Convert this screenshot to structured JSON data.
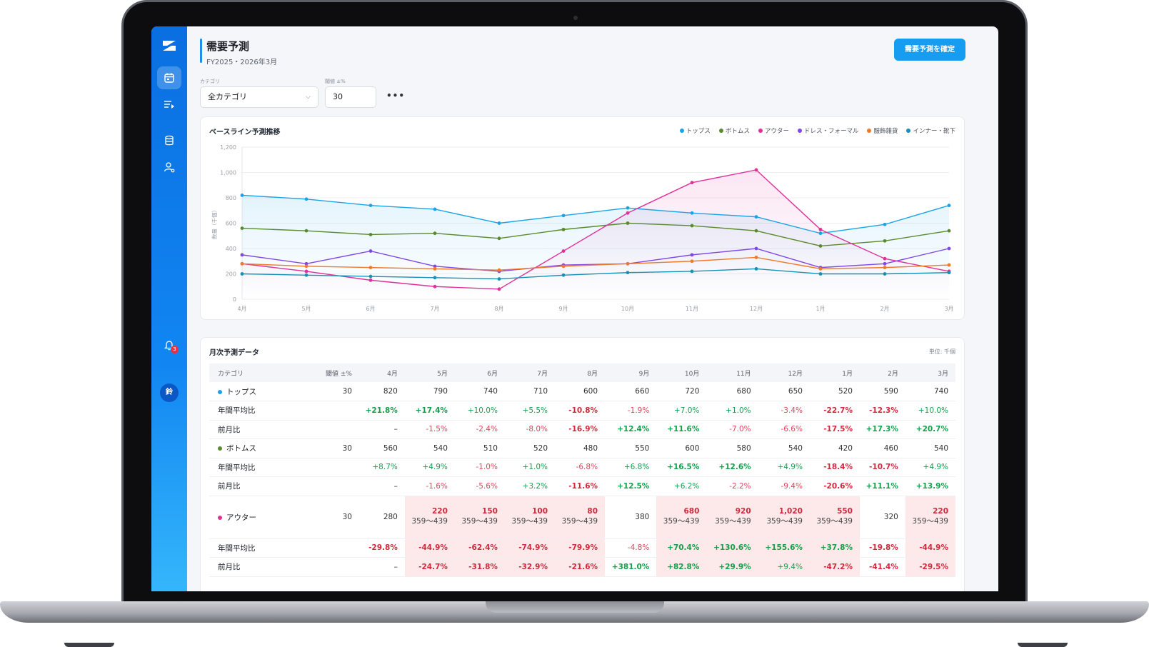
{
  "app": {
    "title": "需要予測",
    "subtitle": "FY2025・2026年3月",
    "confirm_button": "需要予測を確定",
    "notification_count": "3",
    "avatar_initial": "鈴"
  },
  "filters": {
    "category_label": "カテゴリ",
    "category_value": "全カテゴリ",
    "threshold_label": "閾値 ±%",
    "threshold_value": "30",
    "more": "•••"
  },
  "chart": {
    "title": "ベースライン予測推移",
    "y_axis_label": "数量（千個）"
  },
  "chart_data": {
    "type": "line",
    "categories": [
      "4月",
      "5月",
      "6月",
      "7月",
      "8月",
      "9月",
      "10月",
      "11月",
      "12月",
      "1月",
      "2月",
      "3月"
    ],
    "ylim": [
      0,
      1200
    ],
    "yticks": [
      "0",
      "200",
      "400",
      "600",
      "800",
      "1,000",
      "1,200"
    ],
    "ytick_values": [
      0,
      200,
      400,
      600,
      800,
      1000,
      1200
    ],
    "grid": true,
    "legend_position": "top-right",
    "series": [
      {
        "name": "トップス",
        "color": "#1aa3e8",
        "values": [
          820,
          790,
          740,
          710,
          600,
          660,
          720,
          680,
          650,
          520,
          590,
          740
        ],
        "fill": true
      },
      {
        "name": "ボトムス",
        "color": "#5a8a2e",
        "values": [
          560,
          540,
          510,
          520,
          480,
          550,
          600,
          580,
          540,
          420,
          460,
          540
        ],
        "fill": false
      },
      {
        "name": "アウター",
        "color": "#e0309a",
        "values": [
          280,
          220,
          150,
          100,
          80,
          380,
          680,
          920,
          1020,
          550,
          320,
          220
        ],
        "fill": true
      },
      {
        "name": "ドレス・フォーマル",
        "color": "#8048e6",
        "values": [
          350,
          280,
          380,
          260,
          220,
          270,
          280,
          350,
          400,
          250,
          280,
          400
        ],
        "fill": false
      },
      {
        "name": "服飾雑貨",
        "color": "#f07a2a",
        "values": [
          280,
          260,
          250,
          240,
          230,
          260,
          280,
          300,
          330,
          240,
          250,
          270
        ],
        "fill": false
      },
      {
        "name": "インナー・靴下",
        "color": "#1790b8",
        "values": [
          200,
          190,
          180,
          170,
          160,
          190,
          210,
          220,
          240,
          200,
          200,
          210
        ],
        "fill": false
      }
    ]
  },
  "table": {
    "title": "月次予測データ",
    "unit": "単位: 千個",
    "headers": [
      "カテゴリ",
      "閾値 ±%",
      "4月",
      "5月",
      "6月",
      "7月",
      "8月",
      "9月",
      "10月",
      "11月",
      "12月",
      "1月",
      "2月",
      "3月"
    ],
    "rows": [
      {
        "label": "トップス",
        "threshold": "30",
        "color": "#1aa3e8",
        "values": [
          "820",
          "790",
          "740",
          "710",
          "600",
          "660",
          "720",
          "680",
          "650",
          "520",
          "590",
          "740"
        ]
      },
      {
        "label": "年間平均比",
        "values": [
          "+21.8%",
          "+17.4%",
          "+10.0%",
          "+5.5%",
          "-10.8%",
          "-1.9%",
          "+7.0%",
          "+1.0%",
          "-3.4%",
          "-22.7%",
          "-12.3%",
          "+10.0%"
        ]
      },
      {
        "label": "前月比",
        "values": [
          "–",
          "-1.5%",
          "-2.4%",
          "-8.0%",
          "-16.9%",
          "+12.4%",
          "+11.6%",
          "-7.0%",
          "-6.6%",
          "-17.5%",
          "+17.3%",
          "+20.7%"
        ]
      },
      {
        "label": "ボトムス",
        "threshold": "30",
        "color": "#5a8a2e",
        "values": [
          "560",
          "540",
          "510",
          "520",
          "480",
          "550",
          "600",
          "580",
          "540",
          "420",
          "460",
          "540"
        ]
      },
      {
        "label": "年間平均比",
        "values": [
          "+8.7%",
          "+4.9%",
          "-1.0%",
          "+1.0%",
          "-6.8%",
          "+6.8%",
          "+16.5%",
          "+12.6%",
          "+4.9%",
          "-18.4%",
          "-10.7%",
          "+4.9%"
        ]
      },
      {
        "label": "前月比",
        "values": [
          "–",
          "-1.6%",
          "-5.6%",
          "+3.2%",
          "-11.6%",
          "+12.5%",
          "+6.2%",
          "-2.2%",
          "-9.4%",
          "-20.6%",
          "+11.1%",
          "+13.9%"
        ]
      },
      {
        "label": "アウター",
        "threshold": "30",
        "color": "#e0309a",
        "values": [
          "280",
          "220",
          "150",
          "100",
          "80",
          "380",
          "680",
          "920",
          "1,020",
          "550",
          "320",
          "220"
        ],
        "range": "359〜439"
      },
      {
        "label": "年間平均比",
        "values": [
          "-29.8%",
          "-44.9%",
          "-62.4%",
          "-74.9%",
          "-79.9%",
          "-4.8%",
          "+70.4%",
          "+130.6%",
          "+155.6%",
          "+37.8%",
          "-19.8%",
          "-44.9%"
        ]
      },
      {
        "label": "前月比",
        "values": [
          "–",
          "-24.7%",
          "-31.8%",
          "-32.9%",
          "-21.6%",
          "+381.0%",
          "+82.8%",
          "+29.9%",
          "+9.4%",
          "-47.2%",
          "-41.4%",
          "-29.5%"
        ]
      }
    ]
  }
}
